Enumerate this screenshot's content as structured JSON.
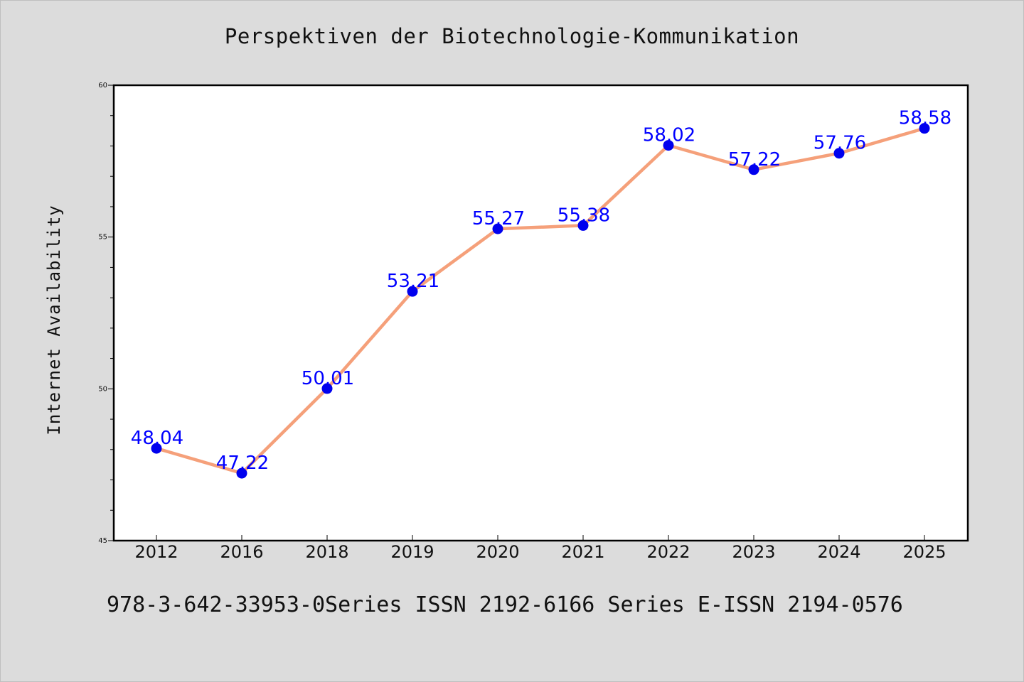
{
  "chart_data": {
    "type": "line",
    "title": "Perspektiven der Biotechnologie-Kommunikation",
    "xlabel": "",
    "ylabel": "Internet Availability",
    "categories": [
      "2012",
      "2016",
      "2018",
      "2019",
      "2020",
      "2021",
      "2022",
      "2023",
      "2024",
      "2025"
    ],
    "series": [
      {
        "values": [
          48.04,
          47.22,
          50.01,
          53.21,
          55.27,
          55.38,
          58.02,
          57.22,
          57.76,
          58.58
        ],
        "labels": [
          "48.04",
          "47.22",
          "50.01",
          "53.21",
          "55.27",
          "55.38",
          "58.02",
          "57.22",
          "57.76",
          "58.58"
        ],
        "line_color": "#f5a07a",
        "marker_color": "#0000ee"
      }
    ],
    "ylim": [
      45,
      60
    ],
    "yticks": [
      45,
      50,
      55,
      60
    ],
    "ytick_labels": [
      "45",
      "50",
      "55",
      "60"
    ],
    "grid": false,
    "legend": "none"
  },
  "footer": {
    "text": "978-3-642-33953-0Series ISSN 2192-6166 Series E-ISSN 2194-0576"
  },
  "colors": {
    "background": "#dcdcdc",
    "plot_background": "#ffffff",
    "axis": "#000000",
    "label": "#0000ff"
  }
}
